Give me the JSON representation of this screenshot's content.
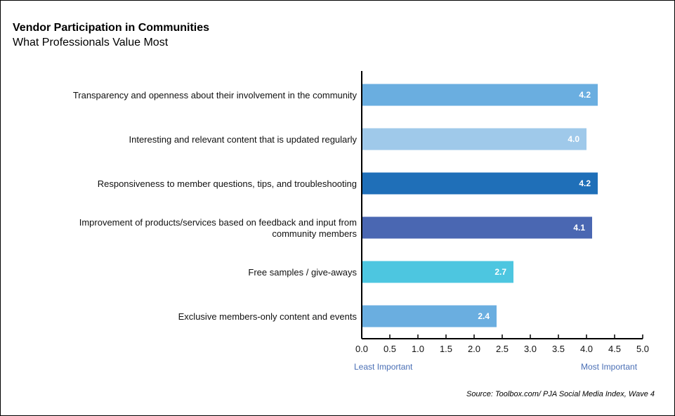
{
  "chart_data": {
    "type": "bar",
    "orientation": "horizontal",
    "title": "Vendor Participation in Communities",
    "subtitle": "What Professionals Value Most",
    "categories": [
      [
        "Transparency and openness about their involvement in the community"
      ],
      [
        "Interesting and relevant content that is updated regularly"
      ],
      [
        "Responsiveness to member questions, tips, and troubleshooting"
      ],
      [
        "Improvement of products/services based on feedback and input from",
        "community members"
      ],
      [
        "Free samples / give-aways"
      ],
      [
        "Exclusive members-only content and events"
      ]
    ],
    "values": [
      4.2,
      4.0,
      4.2,
      4.1,
      2.7,
      2.4
    ],
    "value_labels": [
      "4.2",
      "4.0",
      "4.2",
      "4.1",
      "2.7",
      "2.4"
    ],
    "colors": [
      "#6aaee0",
      "#9fc9ea",
      "#1f6fb8",
      "#4a67b2",
      "#4dc6e0",
      "#6aaee0"
    ],
    "xlim": [
      0,
      5
    ],
    "xticks": [
      "0.0",
      "0.5",
      "1.0",
      "1.5",
      "2.0",
      "2.5",
      "3.0",
      "3.5",
      "4.0",
      "4.5",
      "5.0"
    ],
    "x_min_label": "Least Important",
    "x_max_label": "Most Important",
    "grid": false,
    "source": "Source: Toolbox.com/ PJA Social Media Index, Wave 4"
  }
}
